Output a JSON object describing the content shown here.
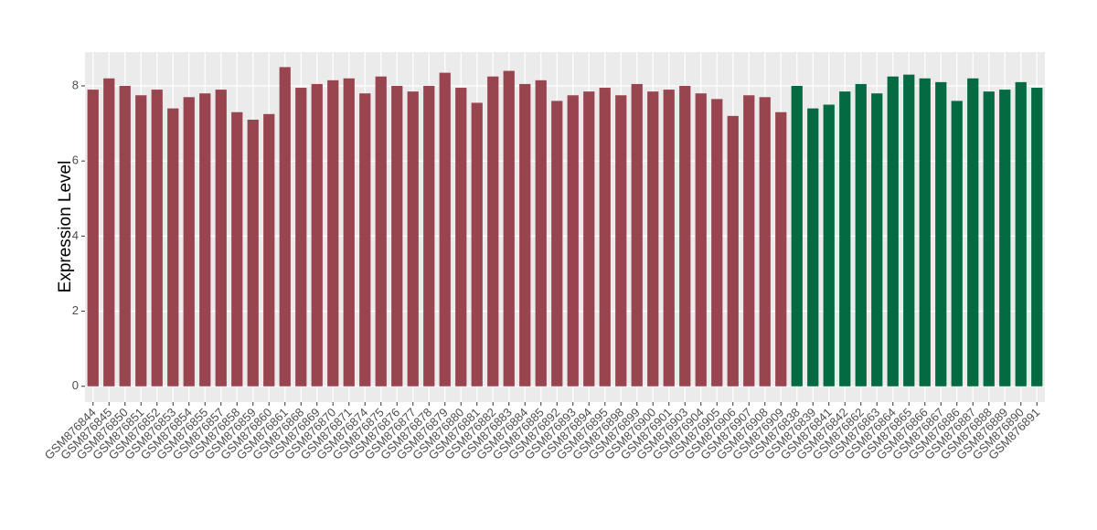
{
  "chart_data": {
    "type": "bar",
    "y_label": "Expression Level",
    "categories": [
      "GSM876844",
      "GSM876845",
      "GSM876850",
      "GSM876851",
      "GSM876852",
      "GSM876853",
      "GSM876854",
      "GSM876855",
      "GSM876857",
      "GSM876858",
      "GSM876859",
      "GSM876860",
      "GSM876861",
      "GSM876868",
      "GSM876869",
      "GSM876870",
      "GSM876871",
      "GSM876874",
      "GSM876875",
      "GSM876876",
      "GSM876877",
      "GSM876878",
      "GSM876879",
      "GSM876880",
      "GSM876881",
      "GSM876882",
      "GSM876883",
      "GSM876884",
      "GSM876885",
      "GSM876892",
      "GSM876893",
      "GSM876894",
      "GSM876895",
      "GSM876898",
      "GSM876899",
      "GSM876900",
      "GSM876901",
      "GSM876903",
      "GSM876904",
      "GSM876905",
      "GSM876906",
      "GSM876907",
      "GSM876908",
      "GSM876909",
      "GSM876838",
      "GSM876839",
      "GSM876841",
      "GSM876842",
      "GSM876862",
      "GSM876863",
      "GSM876864",
      "GSM876865",
      "GSM876866",
      "GSM876867",
      "GSM876886",
      "GSM876887",
      "GSM876888",
      "GSM876889",
      "GSM876890",
      "GSM876891"
    ],
    "series": [
      {
        "color": "#984550",
        "values": [
          7.9,
          8.2,
          8.0,
          7.75,
          7.9,
          7.4,
          7.7,
          7.8,
          7.9,
          7.3,
          7.1,
          7.25,
          8.5,
          7.95,
          8.05,
          8.15,
          8.2,
          7.8,
          8.25,
          8.0,
          7.85,
          8.0,
          8.35,
          7.95,
          7.55,
          8.25,
          8.4,
          8.05,
          8.15,
          7.6,
          7.75,
          7.85,
          7.95,
          7.75,
          8.05,
          7.85,
          7.9,
          8.0,
          7.8,
          7.65,
          7.2,
          7.75,
          7.7,
          7.3,
          null,
          null,
          null,
          null,
          null,
          null,
          null,
          null,
          null,
          null,
          null,
          null,
          null,
          null,
          null,
          null
        ]
      },
      {
        "color": "#036a41",
        "values": [
          null,
          null,
          null,
          null,
          null,
          null,
          null,
          null,
          null,
          null,
          null,
          null,
          null,
          null,
          null,
          null,
          null,
          null,
          null,
          null,
          null,
          null,
          null,
          null,
          null,
          null,
          null,
          null,
          null,
          null,
          null,
          null,
          null,
          null,
          null,
          null,
          null,
          null,
          null,
          null,
          null,
          null,
          null,
          null,
          8.0,
          7.4,
          7.5,
          7.85,
          8.05,
          7.8,
          8.25,
          8.3,
          8.2,
          8.1,
          7.6,
          8.2,
          7.85,
          7.9,
          8.1,
          7.95
        ]
      }
    ],
    "ylim": [
      -0.42,
      8.9
    ],
    "yticks": [
      0,
      2,
      4,
      6,
      8
    ],
    "grid": true
  }
}
